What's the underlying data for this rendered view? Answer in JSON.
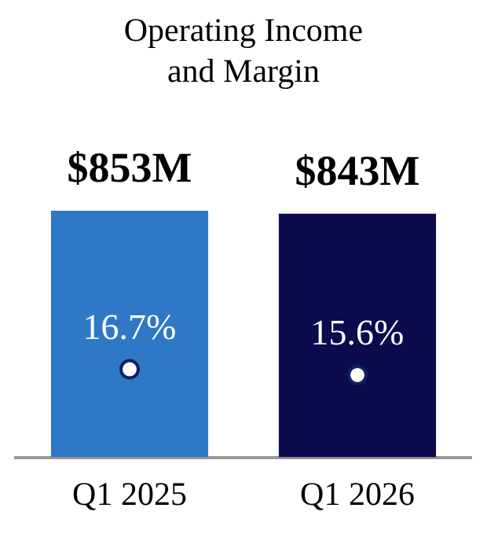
{
  "chart_data": {
    "type": "bar",
    "title": "Operating Income and Margin",
    "categories": [
      "Q1 2025",
      "Q1 2026"
    ],
    "series": [
      {
        "colors": [
          "#2f78c6",
          "#0b0b4d"
        ],
        "values": [
          853,
          843
        ],
        "value_labels": [
          "$853M",
          "$843M"
        ]
      },
      {
        "type": "scatter",
        "axis": "y2",
        "color": "#ffffff",
        "values": [
          16.7,
          15.6
        ],
        "value_labels": [
          "16.7%",
          "15.6%"
        ]
      }
    ],
    "tick_labels": "x",
    "grid": false,
    "legend": false,
    "marker": "circle"
  }
}
